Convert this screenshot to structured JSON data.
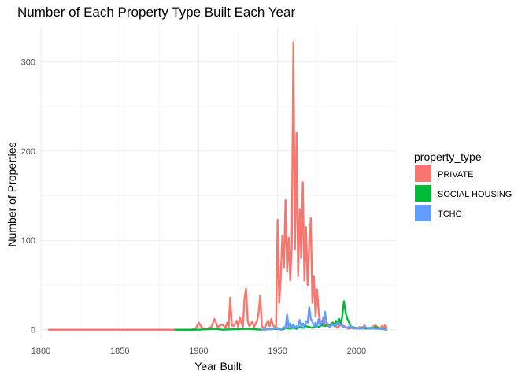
{
  "chart_data": {
    "type": "line",
    "title": "Number of Each Property Type Built Each Year",
    "xlabel": "Year Built",
    "ylabel": "Number of Properties",
    "xlim": [
      1800,
      2025
    ],
    "ylim": [
      -10,
      340
    ],
    "xticks": [
      1800,
      1850,
      1900,
      1950,
      2000
    ],
    "yticks": [
      0,
      100,
      200,
      300
    ],
    "grid": true,
    "legend": {
      "title": "property_type",
      "position": "right"
    },
    "series": [
      {
        "name": "PRIVATE",
        "color": "#F8766D",
        "x": [
          1805,
          1895,
          1898,
          1900,
          1902,
          1905,
          1908,
          1910,
          1912,
          1915,
          1917,
          1918,
          1919,
          1920,
          1921,
          1922,
          1924,
          1925,
          1926,
          1927,
          1928,
          1929,
          1930,
          1931,
          1932,
          1934,
          1935,
          1937,
          1938,
          1939,
          1940,
          1941,
          1942,
          1944,
          1945,
          1946,
          1947,
          1948,
          1949,
          1950,
          1951,
          1952,
          1953,
          1954,
          1955,
          1956,
          1957,
          1958,
          1959,
          1960,
          1961,
          1962,
          1963,
          1964,
          1965,
          1966,
          1967,
          1968,
          1969,
          1970,
          1971,
          1972,
          1973,
          1974,
          1975,
          1976,
          1977,
          1978,
          1979,
          1980,
          1982,
          1985,
          1988,
          1990,
          1992,
          1995,
          1998,
          2000,
          2002,
          2004,
          2005,
          2006,
          2008,
          2010,
          2012,
          2014,
          2015,
          2016,
          2017,
          2018,
          2019
        ],
        "y": [
          0,
          0,
          1,
          8,
          2,
          1,
          3,
          12,
          3,
          6,
          2,
          8,
          3,
          36,
          5,
          4,
          10,
          3,
          14,
          8,
          3,
          35,
          46,
          10,
          4,
          9,
          3,
          10,
          20,
          38,
          4,
          2,
          3,
          10,
          4,
          12,
          5,
          3,
          4,
          123,
          30,
          60,
          105,
          70,
          145,
          65,
          103,
          55,
          95,
          322,
          90,
          220,
          60,
          135,
          80,
          165,
          55,
          115,
          50,
          95,
          125,
          30,
          60,
          15,
          45,
          20,
          8,
          6,
          14,
          5,
          4,
          8,
          2,
          6,
          4,
          1,
          3,
          1,
          3,
          1,
          5,
          2,
          1,
          3,
          5,
          2,
          1,
          4,
          2,
          5,
          1
        ]
      },
      {
        "name": "SOCIAL HOUSING",
        "color": "#00BA38",
        "x": [
          1885,
          1900,
          1910,
          1915,
          1930,
          1940,
          1950,
          1953,
          1955,
          1958,
          1960,
          1962,
          1964,
          1966,
          1968,
          1970,
          1972,
          1974,
          1976,
          1978,
          1980,
          1982,
          1984,
          1985,
          1986,
          1987,
          1988,
          1989,
          1990,
          1991,
          1992,
          1993,
          1994,
          1995,
          1996,
          1997,
          1998,
          2000,
          2002,
          2004,
          2006,
          2008,
          2010,
          2012,
          2015,
          2019
        ],
        "y": [
          0,
          0,
          1,
          0,
          1,
          0,
          1,
          0,
          2,
          1,
          2,
          1,
          3,
          2,
          4,
          3,
          2,
          4,
          3,
          5,
          4,
          6,
          5,
          8,
          4,
          10,
          6,
          12,
          7,
          15,
          32,
          20,
          13,
          9,
          5,
          3,
          2,
          2,
          1,
          3,
          1,
          2,
          1,
          3,
          1,
          0
        ]
      },
      {
        "name": "TCHC",
        "color": "#619CFF",
        "x": [
          1940,
          1948,
          1950,
          1952,
          1954,
          1955,
          1956,
          1957,
          1958,
          1959,
          1960,
          1961,
          1962,
          1963,
          1964,
          1965,
          1966,
          1967,
          1968,
          1969,
          1970,
          1971,
          1972,
          1973,
          1974,
          1975,
          1976,
          1977,
          1978,
          1979,
          1980,
          1981,
          1982,
          1983,
          1985,
          1987,
          1988,
          1990,
          1992,
          1994,
          1996,
          1998,
          2000,
          2002,
          2005,
          2008,
          2010,
          2012,
          2015,
          2019
        ],
        "y": [
          0,
          1,
          2,
          0,
          3,
          2,
          17,
          3,
          7,
          2,
          6,
          2,
          4,
          2,
          11,
          4,
          7,
          2,
          9,
          8,
          25,
          12,
          9,
          4,
          8,
          3,
          12,
          5,
          10,
          6,
          20,
          8,
          5,
          3,
          6,
          4,
          8,
          5,
          3,
          2,
          4,
          1,
          2,
          1,
          3,
          1,
          2,
          1,
          1,
          0
        ]
      }
    ]
  }
}
